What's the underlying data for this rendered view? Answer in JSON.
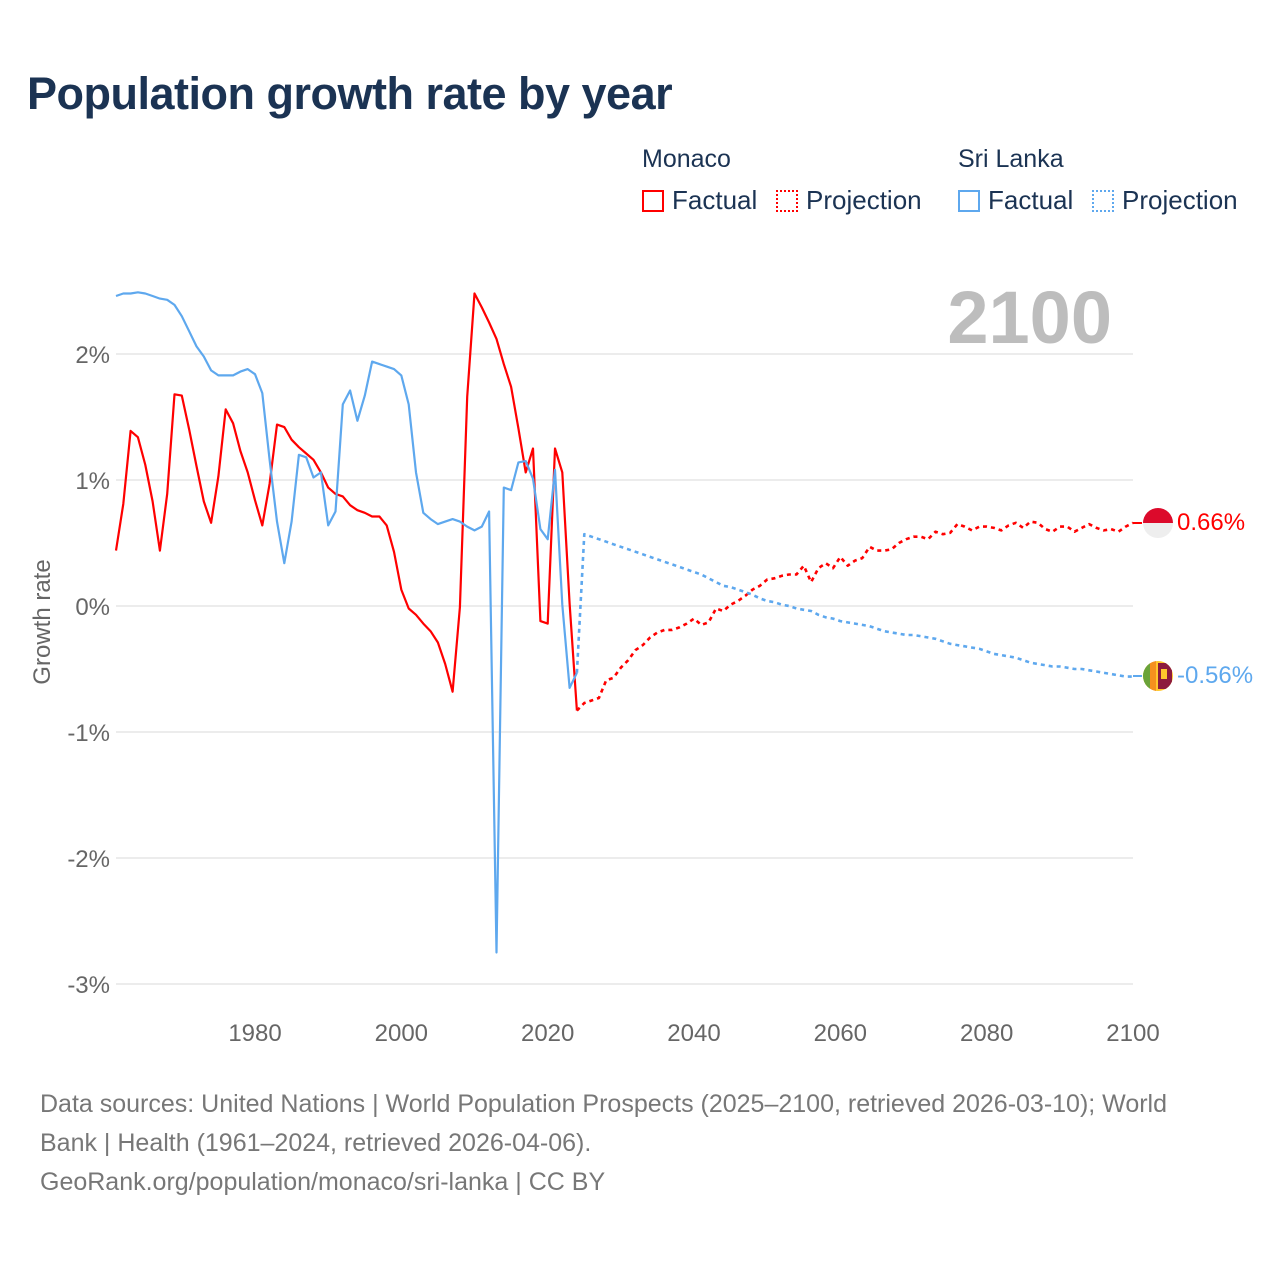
{
  "title": "Population growth rate by year",
  "legend": {
    "groups": [
      {
        "name": "Monaco",
        "factual": "Factual",
        "projection": "Projection",
        "color": "#ff0000"
      },
      {
        "name": "Sri Lanka",
        "factual": "Factual",
        "projection": "Projection",
        "color": "#5ea8ee"
      }
    ]
  },
  "year_display": "2100",
  "end_labels": {
    "monaco": "0.66%",
    "sri_lanka": "-0.56%"
  },
  "footer": {
    "line1": "Data sources: United Nations | World Population Prospects (2025–2100, retrieved 2026-03-10); World",
    "line2": "Bank | Health (1961–2024, retrieved 2026-04-06).",
    "line3": "GeoRank.org/population/monaco/sri-lanka | CC BY"
  },
  "chart_data": {
    "type": "line",
    "title": "Population growth rate by year",
    "xlabel": "",
    "ylabel": "Growth rate",
    "xlim": [
      1961,
      2100
    ],
    "ylim": [
      -3,
      2.6
    ],
    "yticks": [
      2,
      1,
      0,
      -1,
      -2,
      -3
    ],
    "ytick_labels": [
      "2%",
      "1%",
      "0%",
      "-1%",
      "-2%",
      "-3%"
    ],
    "xticks": [
      1980,
      2000,
      2020,
      2040,
      2060,
      2080,
      2100
    ],
    "xtick_labels": [
      "1980",
      "2000",
      "2020",
      "2040",
      "2060",
      "2080",
      "2100"
    ],
    "grid": true,
    "legend_position": "top-right",
    "series": [
      {
        "name": "Monaco Factual",
        "color": "#ff0000",
        "style": "solid",
        "x_start": 1961,
        "values": [
          0.44,
          0.81,
          1.39,
          1.34,
          1.12,
          0.83,
          0.44,
          0.89,
          1.68,
          1.67,
          1.4,
          1.11,
          0.83,
          0.66,
          1.03,
          1.56,
          1.45,
          1.23,
          1.06,
          0.84,
          0.64,
          0.97,
          1.44,
          1.42,
          1.32,
          1.26,
          1.21,
          1.16,
          1.06,
          0.94,
          0.89,
          0.87,
          0.8,
          0.76,
          0.74,
          0.71,
          0.71,
          0.64,
          0.43,
          0.13,
          -0.02,
          -0.07,
          -0.14,
          -0.2,
          -0.29,
          -0.46,
          -0.68,
          -0.01,
          1.66,
          2.48,
          2.37,
          2.25,
          2.12,
          1.92,
          1.74,
          1.41,
          1.06,
          1.25,
          -0.12,
          -0.14,
          1.25,
          1.06,
          0.02,
          -0.83
        ]
      },
      {
        "name": "Monaco Projection",
        "color": "#ff0000",
        "style": "dotted",
        "x_start": 2025,
        "values": [
          -0.77,
          -0.75,
          -0.73,
          -0.59,
          -0.57,
          -0.49,
          -0.43,
          -0.35,
          -0.31,
          -0.25,
          -0.21,
          -0.19,
          -0.19,
          -0.17,
          -0.14,
          -0.1,
          -0.15,
          -0.13,
          -0.02,
          -0.04,
          0.01,
          0.04,
          0.08,
          0.13,
          0.16,
          0.21,
          0.22,
          0.24,
          0.25,
          0.25,
          0.32,
          0.19,
          0.3,
          0.34,
          0.3,
          0.39,
          0.32,
          0.36,
          0.38,
          0.47,
          0.44,
          0.44,
          0.45,
          0.5,
          0.53,
          0.55,
          0.55,
          0.53,
          0.59,
          0.57,
          0.58,
          0.65,
          0.63,
          0.6,
          0.63,
          0.63,
          0.62,
          0.6,
          0.64,
          0.66,
          0.62,
          0.67,
          0.66,
          0.61,
          0.59,
          0.63,
          0.63,
          0.59,
          0.62,
          0.65,
          0.62,
          0.6,
          0.61,
          0.59,
          0.63,
          0.66
        ]
      },
      {
        "name": "Sri Lanka Factual",
        "color": "#5ea8ee",
        "style": "solid",
        "x_start": 1961,
        "values": [
          2.46,
          2.48,
          2.48,
          2.49,
          2.48,
          2.46,
          2.44,
          2.43,
          2.39,
          2.3,
          2.18,
          2.06,
          1.98,
          1.87,
          1.83,
          1.83,
          1.83,
          1.86,
          1.88,
          1.84,
          1.69,
          1.16,
          0.67,
          0.34,
          0.67,
          1.2,
          1.18,
          1.02,
          1.06,
          0.64,
          0.75,
          1.6,
          1.71,
          1.47,
          1.67,
          1.94,
          1.92,
          1.9,
          1.88,
          1.83,
          1.6,
          1.06,
          0.74,
          0.69,
          0.65,
          0.67,
          0.69,
          0.67,
          0.63,
          0.6,
          0.63,
          0.75,
          -2.75,
          0.94,
          0.92,
          1.14,
          1.15,
          1.01,
          0.61,
          0.53,
          1.08,
          0.01,
          -0.65,
          -0.53
        ]
      },
      {
        "name": "Sri Lanka Projection",
        "color": "#5ea8ee",
        "style": "dotted",
        "x_start": 2025,
        "values": [
          0.57,
          0.55,
          0.53,
          0.51,
          0.49,
          0.47,
          0.45,
          0.43,
          0.41,
          0.39,
          0.37,
          0.35,
          0.33,
          0.31,
          0.29,
          0.27,
          0.25,
          0.22,
          0.19,
          0.16,
          0.15,
          0.13,
          0.11,
          0.09,
          0.06,
          0.04,
          0.03,
          0.01,
          0.0,
          -0.02,
          -0.03,
          -0.04,
          -0.07,
          -0.09,
          -0.1,
          -0.12,
          -0.13,
          -0.14,
          -0.15,
          -0.16,
          -0.18,
          -0.2,
          -0.21,
          -0.22,
          -0.23,
          -0.23,
          -0.24,
          -0.25,
          -0.26,
          -0.28,
          -0.3,
          -0.31,
          -0.32,
          -0.33,
          -0.34,
          -0.36,
          -0.38,
          -0.39,
          -0.4,
          -0.41,
          -0.43,
          -0.45,
          -0.46,
          -0.47,
          -0.48,
          -0.48,
          -0.49,
          -0.5,
          -0.5,
          -0.51,
          -0.52,
          -0.53,
          -0.54,
          -0.55,
          -0.56,
          -0.56
        ]
      }
    ]
  }
}
